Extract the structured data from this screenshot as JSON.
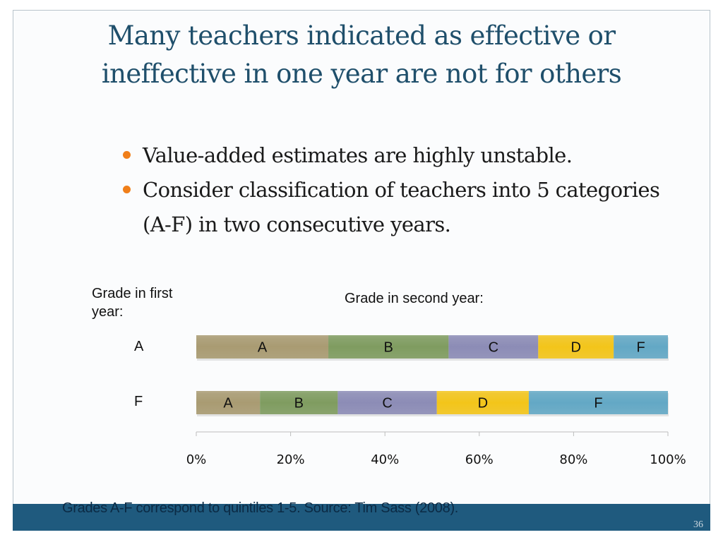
{
  "slide": {
    "title_line1": "Many teachers indicated as effective or",
    "title_line2": "ineffective in one year are not for others",
    "bullets": [
      "Value-added estimates are highly unstable.",
      "Consider classification of teachers into 5 categories (A-F) in two consecutive years."
    ],
    "footnote": "Grades A-F correspond to quintiles 1-5.  Source: Tim Sass (2008).",
    "page_number": "36"
  },
  "chart_data": {
    "type": "bar",
    "orientation": "horizontal",
    "stacked": "100%",
    "ylabel": "Grade in first year:",
    "legend_title": "Grade in second year:",
    "categories": [
      "A",
      "F"
    ],
    "segment_labels": [
      "A",
      "B",
      "C",
      "D",
      "F"
    ],
    "segment_colors": [
      "#a99b72",
      "#7f9c60",
      "#8c8cb6",
      "#f3c51a",
      "#63a8c5"
    ],
    "values": [
      [
        28.0,
        25.5,
        19.0,
        16.0,
        11.5
      ],
      [
        13.5,
        16.5,
        21.0,
        19.5,
        29.5
      ]
    ],
    "xlim": [
      0,
      100
    ],
    "x_ticks": [
      "0%",
      "20%",
      "40%",
      "60%",
      "80%",
      "100%"
    ]
  }
}
